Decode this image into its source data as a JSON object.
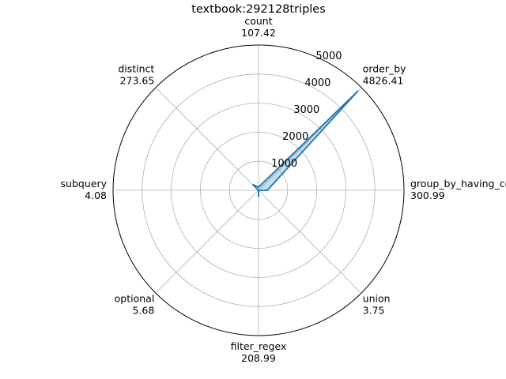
{
  "chart_data": {
    "type": "radar",
    "title": "textbook:292128triples",
    "categories": [
      "order_by",
      "count",
      "distinct",
      "subquery",
      "optional",
      "filter_regex",
      "union",
      "group_by_having_count_distinct"
    ],
    "value_labels": [
      "4826.41",
      "107.42",
      "273.65",
      "4.08",
      "5.68",
      "208.99",
      "3.75",
      "300.99"
    ],
    "values": [
      4826.41,
      107.42,
      273.65,
      4.08,
      5.68,
      208.99,
      3.75,
      300.99
    ],
    "start_angle_deg": 45,
    "rmax": 5000,
    "radial_ticks": [
      1000,
      2000,
      3000,
      4000,
      5000
    ],
    "grid": true,
    "line_color": "#1f77b4",
    "fill_color": "#1f77b4"
  }
}
